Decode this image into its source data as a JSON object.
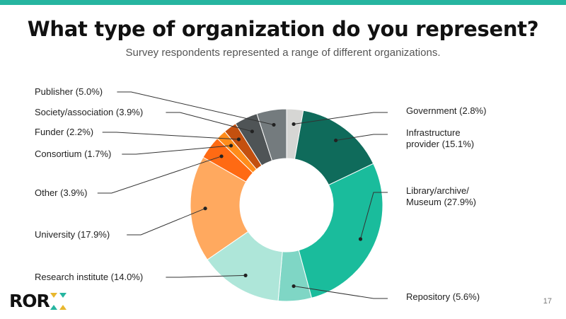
{
  "page": {
    "accent": "#26b5a0",
    "title": "What type of organization do you represent?",
    "subtitle": "Survey respondents represented a range of different organizations.",
    "logo_text": "ROR",
    "page_number": "17"
  },
  "chart_data": {
    "type": "pie",
    "style": "donut",
    "title": "What type of organization do you represent?",
    "subtitle": "Survey respondents represented a range of different organizations.",
    "legend": "none (direct labels)",
    "slices": [
      {
        "label": "Government (2.8%)",
        "name": "Government",
        "value": 2.8,
        "color": "#d6d6d4",
        "side": "right",
        "label_row": 157
      },
      {
        "label": "Infrastructure provider (15.1%)",
        "lines": [
          "Infrastructure",
          "provider (15.1%)"
        ],
        "name": "Infrastructure provider",
        "value": 15.1,
        "color": "#0f6b5b",
        "side": "right",
        "label_row": 196
      },
      {
        "label": "Library/archive/ Museum (27.9%)",
        "lines": [
          "Library/archive/",
          "Museum (27.9%)"
        ],
        "name": "Library/archive/Museum",
        "value": 27.9,
        "color": "#1abc9c",
        "side": "right",
        "label_row": 278
      },
      {
        "label": "Repository (5.6%)",
        "name": "Repository",
        "value": 5.6,
        "color": "#7fd6c5",
        "side": "right",
        "label_row": 420
      },
      {
        "label": "Research institute (14.0%)",
        "name": "Research institute",
        "value": 14.0,
        "color": "#aee6d9",
        "side": "left",
        "label_row": 392
      },
      {
        "label": "University (17.9%)",
        "name": "University",
        "value": 17.9,
        "color": "#ffa95f",
        "side": "left",
        "label_row": 332
      },
      {
        "label": "Other (3.9%)",
        "name": "Other",
        "value": 3.9,
        "color": "#ff6a13",
        "side": "left",
        "label_row": 273
      },
      {
        "label": "Consortium (1.7%)",
        "name": "Consortium",
        "value": 1.7,
        "color": "#ff8c1a",
        "side": "left",
        "label_row": 218
      },
      {
        "label": "Funder (2.2%)",
        "name": "Funder",
        "value": 2.2,
        "color": "#c4500f",
        "side": "left",
        "label_row": 187
      },
      {
        "label": "Society/association (3.9%)",
        "name": "Society/association",
        "value": 3.9,
        "color": "#4f5456",
        "side": "left",
        "label_row": 159
      },
      {
        "label": "Publisher (5.0%)",
        "name": "Publisher",
        "value": 5.0,
        "color": "#747b7e",
        "side": "left",
        "label_row": 130
      }
    ]
  }
}
